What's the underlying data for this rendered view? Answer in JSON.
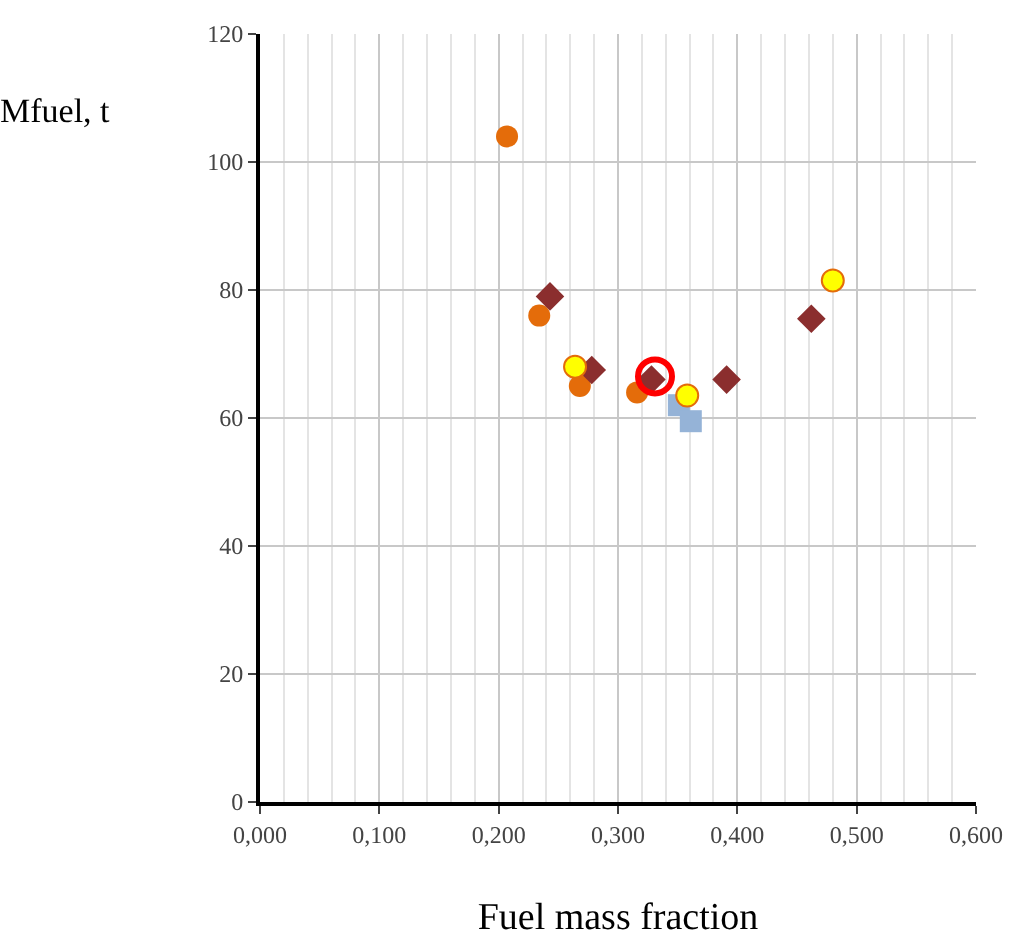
{
  "chart_data": {
    "type": "scatter",
    "xlabel": "Fuel mass fraction",
    "ylabel": "Mfuel, t",
    "xlim": [
      0,
      0.6
    ],
    "ylim": [
      0,
      120
    ],
    "xticks": [
      {
        "value": 0,
        "label": "0,000"
      },
      {
        "value": 0.1,
        "label": "0,100"
      },
      {
        "value": 0.2,
        "label": "0,200"
      },
      {
        "value": 0.3,
        "label": "0,300"
      },
      {
        "value": 0.4,
        "label": "0,400"
      },
      {
        "value": 0.5,
        "label": "0,500"
      },
      {
        "value": 0.6,
        "label": "0,600"
      }
    ],
    "yticks": [
      0,
      20,
      40,
      60,
      80,
      100,
      120
    ],
    "grid": true,
    "series": [
      {
        "color": "#e46c0a",
        "marker": "circle",
        "x": [
          0.207,
          0.234,
          0.268,
          0.316
        ],
        "values": [
          104,
          76,
          65,
          64
        ]
      },
      {
        "color": "#95b3d7",
        "marker": "square",
        "x": [
          0.351,
          0.361
        ],
        "values": [
          62,
          59.5
        ]
      },
      {
        "color": "#8b2e2e",
        "marker": "diamond",
        "x": [
          0.243,
          0.278,
          0.328,
          0.391,
          0.462
        ],
        "values": [
          79,
          67.5,
          66,
          66,
          75.5
        ]
      },
      {
        "color": "#ffff00",
        "marker": "circle",
        "x": [
          0.264,
          0.358,
          0.48
        ],
        "values": [
          68,
          63.5,
          81.5
        ]
      },
      {
        "color": "#ff0000",
        "marker": "circle",
        "x": [
          0.331
        ],
        "values": [
          66.5
        ]
      }
    ]
  }
}
